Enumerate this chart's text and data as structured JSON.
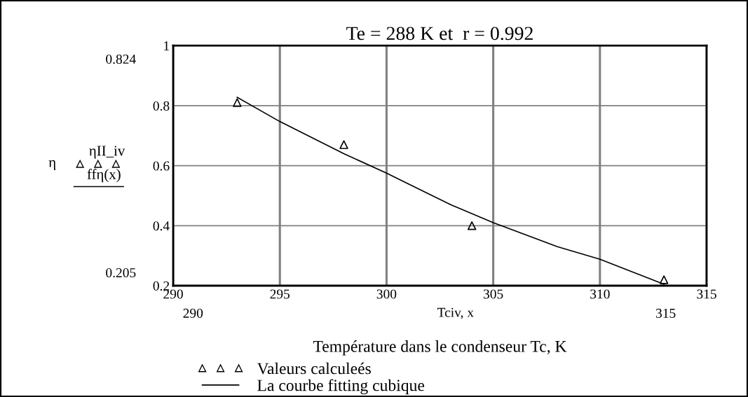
{
  "chart_data": {
    "type": "scatter",
    "title": "Te = 288 K et  r = 0.992",
    "xlabel": "Température dans le condenseur Tc, K",
    "annotations": [
      "η",
      "ηII_iv",
      "ffη(x)",
      "0.824",
      "0.205",
      "290",
      "315",
      "Tciv, x"
    ],
    "series": [
      {
        "name": "Valeurs calculeés",
        "type": "scatter",
        "color": "#000000",
        "marker": "triangle",
        "x": [
          293,
          298,
          304,
          313
        ],
        "values": [
          0.81,
          0.67,
          0.4,
          0.22
        ]
      },
      {
        "name": "La courbe fitting cubique",
        "type": "line",
        "color": "#000000",
        "marker": "none",
        "line_style": "solid",
        "x": [
          293,
          295,
          298,
          300,
          303,
          305,
          308,
          310,
          313
        ],
        "values": [
          0.828,
          0.747,
          0.64,
          0.575,
          0.47,
          0.41,
          0.33,
          0.288,
          0.205
        ]
      }
    ],
    "xlim": [
      290,
      315
    ],
    "xticks": [
      290,
      295,
      300,
      305,
      310,
      315
    ],
    "ylim": [
      0.2,
      1
    ],
    "yticks": [
      0.2,
      0.4,
      0.6,
      0.8,
      1
    ],
    "grid": true,
    "legend": "bottom"
  }
}
